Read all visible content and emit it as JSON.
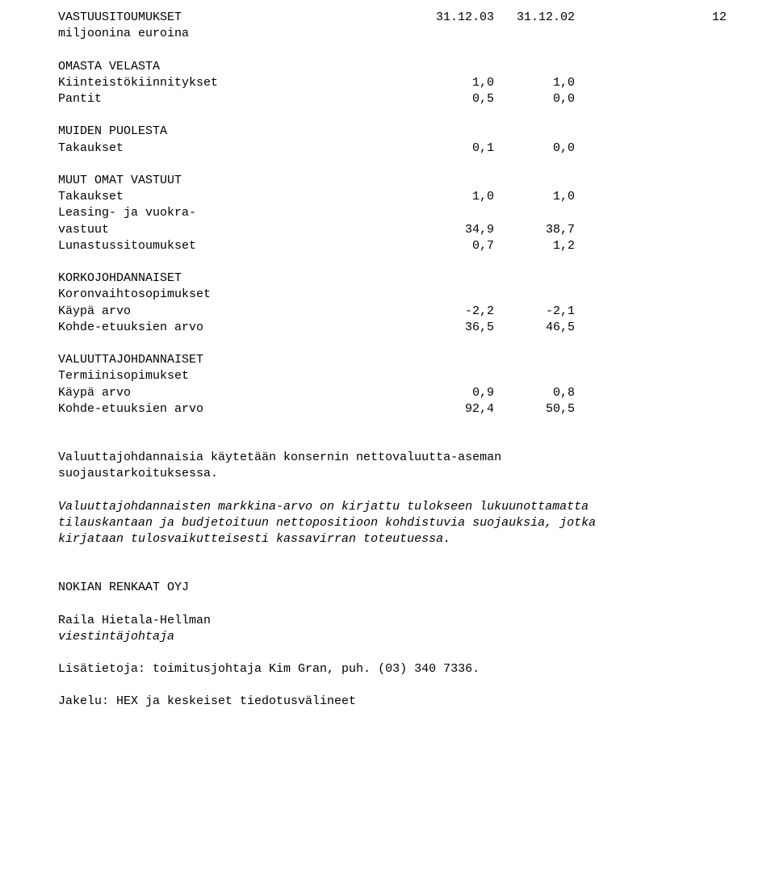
{
  "page_number": "12",
  "header": {
    "label": "VASTUUSITOUMUKSET",
    "col1": "31.12.03",
    "col2": "31.12.02"
  },
  "units": "miljoonina euroina",
  "sections": {
    "omasta": {
      "title": "OMASTA VELASTA",
      "rows": [
        {
          "label": "Kiinteistökiinnitykset",
          "c1": "1,0",
          "c2": "1,0"
        },
        {
          "label": "Pantit",
          "c1": "0,5",
          "c2": "0,0"
        }
      ]
    },
    "muiden": {
      "title": "MUIDEN PUOLESTA",
      "rows": [
        {
          "label": "Takaukset",
          "c1": "0,1",
          "c2": "0,0"
        }
      ]
    },
    "muut": {
      "title": "MUUT OMAT VASTUUT",
      "rows": [
        {
          "label": "Takaukset",
          "c1": "1,0",
          "c2": "1,0"
        },
        {
          "label": "Leasing- ja vuokra-",
          "c1": "",
          "c2": ""
        },
        {
          "label": "vastuut",
          "c1": "34,9",
          "c2": "38,7"
        },
        {
          "label": "Lunastussitoumukset",
          "c1": "0,7",
          "c2": "1,2"
        }
      ]
    },
    "korko": {
      "title": "KORKOJOHDANNAISET",
      "sub": "Koronvaihtosopimukset",
      "rows": [
        {
          "label": "Käypä arvo",
          "c1": "-2,2",
          "c2": "-2,1"
        },
        {
          "label": "Kohde-etuuksien arvo",
          "c1": "36,5",
          "c2": "46,5"
        }
      ]
    },
    "valuutta": {
      "title": "VALUUTTAJOHDANNAISET",
      "sub": "Termiinisopimukset",
      "rows": [
        {
          "label": "Käypä arvo",
          "c1": "0,9",
          "c2": "0,8"
        },
        {
          "label": "Kohde-etuuksien arvo",
          "c1": "92,4",
          "c2": "50,5"
        }
      ]
    }
  },
  "para1": "Valuuttajohdannaisia käytetään konsernin nettovaluutta-aseman suojaustarkoituksessa.",
  "para2": "Valuuttajohdannaisten markkina-arvo on kirjattu tulokseen lukuunottamatta tilauskantaan ja budjetoituun nettopositioon kohdistuvia suojauksia, jotka kirjataan tulosvaikutteisesti kassavirran toteutuessa.",
  "company": "NOKIAN RENKAAT OYJ",
  "signer_name": "Raila Hietala-Hellman",
  "signer_title": "viestintäjohtaja",
  "more_info": "Lisätietoja: toimitusjohtaja Kim Gran, puh. (03) 340 7336.",
  "distribution": "Jakelu: HEX ja keskeiset tiedotusvälineet"
}
